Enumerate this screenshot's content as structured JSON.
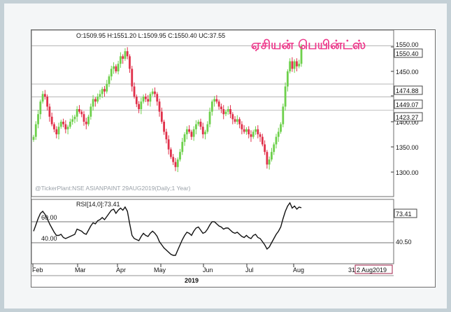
{
  "header": {
    "ohlc_text": "O:1509.95  H:1551.20  L:1509.95  C:1550.40  UC:37.55",
    "title": "ஏசியன் பெயின்ட்ஸ்"
  },
  "watermark": "@TickerPlant:NSE ASIANPAINT 29AUG2019(Daily;1 Year)",
  "price_axis": {
    "ticks": [
      "1550.00",
      "1500.00",
      "1450.00",
      "1400.00",
      "1350.00",
      "1300.00"
    ],
    "level_labels": [
      "1550.40",
      "1474.88",
      "1449.07",
      "1423.27"
    ]
  },
  "rsi_panel": {
    "label": "RSI[14,0]:73.41",
    "level_labels": [
      "60.00",
      "40.00"
    ],
    "axis_label": "40.50",
    "current_label": "73.41"
  },
  "x_axis": {
    "months": [
      "Feb",
      "Mar",
      "Apr",
      "May",
      "Jun",
      "Jul",
      "Aug"
    ],
    "extra_tick": "31",
    "date_box": "2 Aug2019",
    "year": "2019"
  },
  "colors": {
    "up": "#6dd04b",
    "down": "#e0304a",
    "title": "#ee3a8c",
    "date_box": "#a0204a",
    "frame": "#c4d0d6"
  },
  "chart_data": [
    {
      "type": "candlestick",
      "title": "ஏசியன் பெயின்ட்ஸ்",
      "xlabel": "2019",
      "ylabel": "",
      "ylim": [
        1280,
        1560
      ],
      "x": [
        "Feb",
        "Mar",
        "Apr",
        "May",
        "Jun",
        "Jul",
        "Aug"
      ],
      "closes": [
        1370,
        1395,
        1415,
        1440,
        1455,
        1450,
        1430,
        1410,
        1395,
        1385,
        1375,
        1390,
        1400,
        1395,
        1385,
        1390,
        1400,
        1405,
        1410,
        1425,
        1420,
        1415,
        1400,
        1395,
        1410,
        1430,
        1445,
        1440,
        1450,
        1455,
        1465,
        1460,
        1475,
        1490,
        1505,
        1510,
        1500,
        1515,
        1530,
        1525,
        1540,
        1530,
        1505,
        1470,
        1450,
        1435,
        1425,
        1440,
        1450,
        1445,
        1440,
        1455,
        1460,
        1455,
        1440,
        1420,
        1400,
        1380,
        1365,
        1345,
        1330,
        1320,
        1310,
        1325,
        1340,
        1360,
        1375,
        1385,
        1380,
        1370,
        1385,
        1395,
        1400,
        1390,
        1375,
        1380,
        1395,
        1420,
        1440,
        1445,
        1440,
        1430,
        1425,
        1415,
        1420,
        1425,
        1415,
        1405,
        1400,
        1405,
        1395,
        1385,
        1380,
        1385,
        1375,
        1370,
        1380,
        1385,
        1375,
        1370,
        1355,
        1340,
        1315,
        1325,
        1340,
        1355,
        1370,
        1380,
        1395,
        1430,
        1470,
        1500,
        1520,
        1505,
        1520,
        1510,
        1515,
        1550.4
      ],
      "levels": [
        1550.4,
        1474.88,
        1449.07,
        1423.27
      ]
    },
    {
      "type": "line",
      "title": "",
      "series": [
        {
          "name": "RSI[14,0]",
          "values": [
            51,
            57,
            63,
            68,
            70,
            67,
            63,
            58,
            54,
            50,
            47,
            47,
            48,
            45,
            44,
            45,
            46,
            47,
            48,
            53,
            52,
            51,
            49,
            48,
            52,
            56,
            59,
            58,
            61,
            62,
            64,
            62,
            65,
            68,
            71,
            72,
            68,
            71,
            73,
            71,
            74,
            70,
            58,
            47,
            44,
            43,
            42,
            46,
            49,
            47,
            46,
            49,
            51,
            49,
            46,
            41,
            38,
            35,
            33,
            31,
            29,
            28,
            28,
            33,
            38,
            43,
            47,
            50,
            49,
            47,
            51,
            54,
            55,
            52,
            49,
            50,
            53,
            57,
            60,
            60,
            58,
            56,
            55,
            53,
            54,
            54,
            52,
            50,
            49,
            50,
            48,
            46,
            45,
            47,
            45,
            44,
            47,
            48,
            45,
            44,
            41,
            38,
            34,
            36,
            40,
            44,
            48,
            51,
            55,
            63,
            70,
            75,
            78,
            73,
            75,
            72,
            74,
            73.41
          ]
        }
      ],
      "levels": [
        60,
        40
      ],
      "current": 73.41
    }
  ]
}
